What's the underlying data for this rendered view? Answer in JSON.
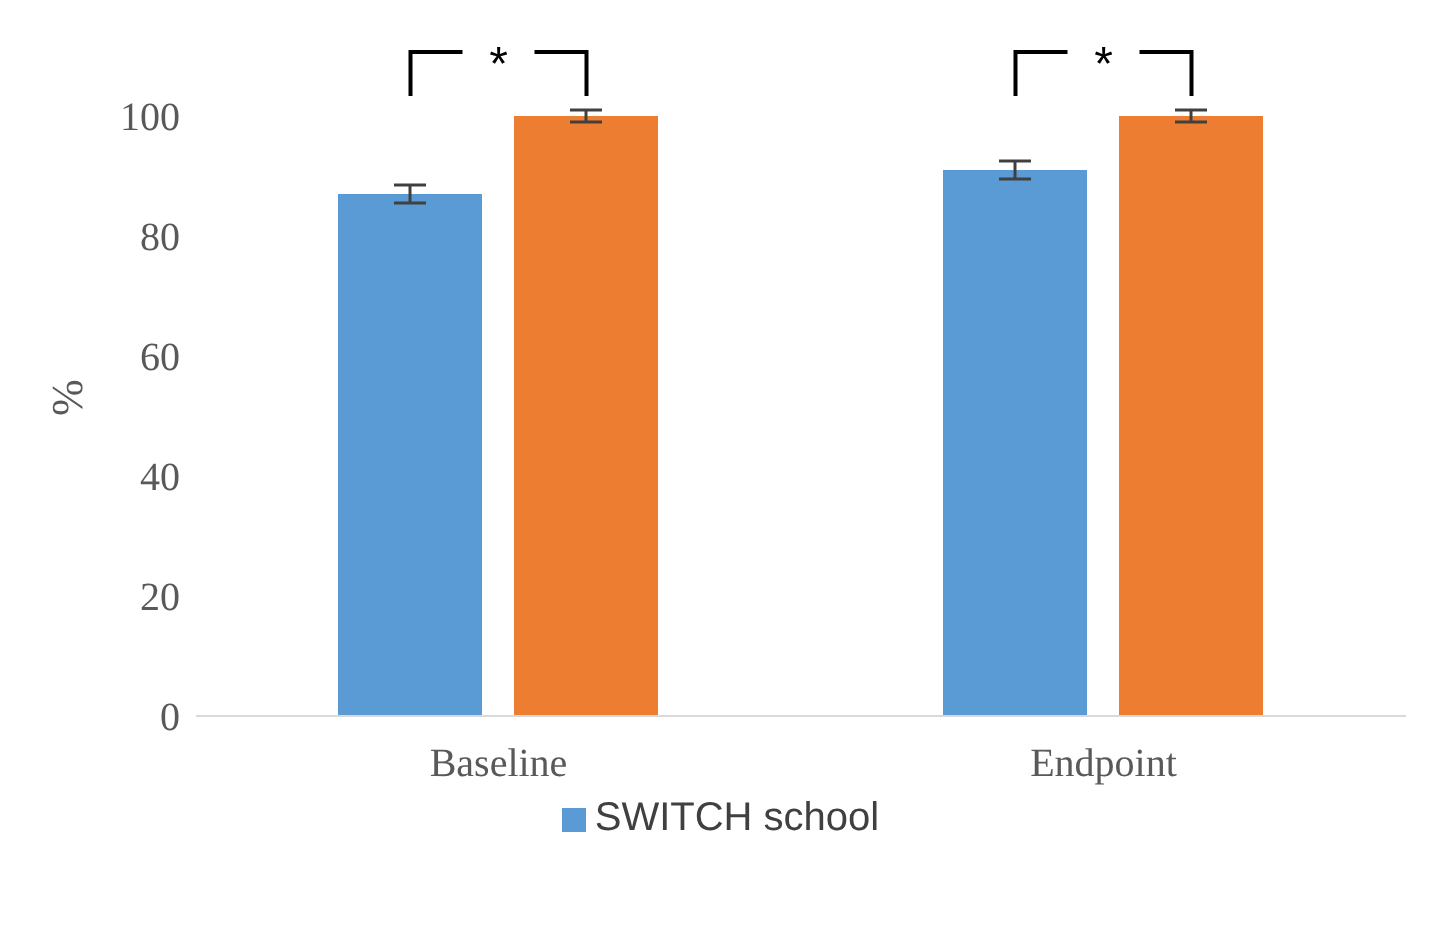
{
  "chart_data": {
    "type": "bar",
    "categories": [
      "Baseline",
      "Endpoint"
    ],
    "series": [
      {
        "name": "SWITCH school",
        "color": "#5b9bd5",
        "values": [
          87,
          91
        ],
        "errors": [
          1.5,
          1.5
        ]
      },
      {
        "color": "#ed7d31",
        "values": [
          100,
          100
        ],
        "errors": [
          1,
          1
        ]
      }
    ],
    "ylabel": "%",
    "ylim": [
      0,
      100
    ],
    "yticks": [
      0,
      20,
      40,
      60,
      80,
      100
    ],
    "annotations": [
      "*",
      "*"
    ],
    "legend": "bottom"
  }
}
